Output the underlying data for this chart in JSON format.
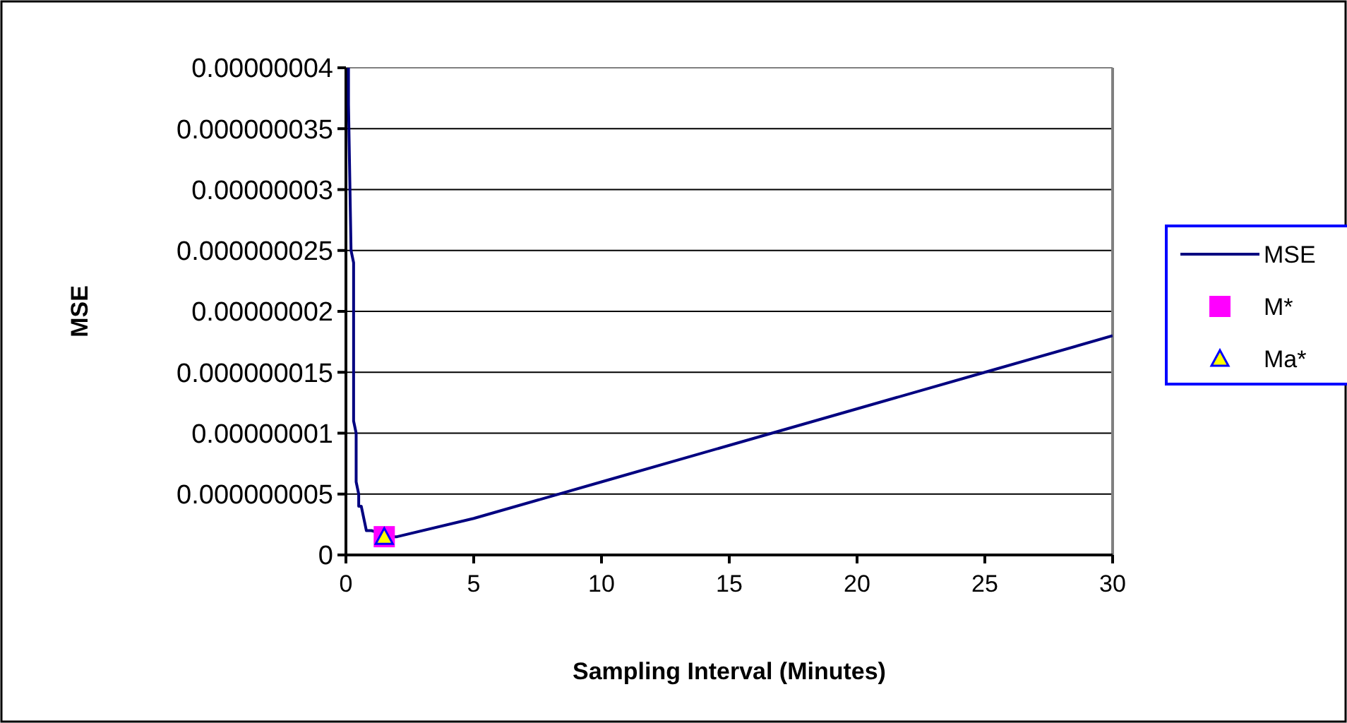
{
  "chart_data": {
    "type": "line",
    "xlabel": "Sampling Interval (Minutes)",
    "ylabel": "MSE",
    "xlim": [
      0,
      30
    ],
    "xticks": [
      0,
      5,
      10,
      15,
      20,
      25,
      30
    ],
    "ylim": [
      0,
      4e-08
    ],
    "yticks": [
      {
        "value": 0,
        "label": "0"
      },
      {
        "value": 5e-09,
        "label": "0.000000005"
      },
      {
        "value": 1e-08,
        "label": "0.00000001"
      },
      {
        "value": 1.5e-08,
        "label": "0.000000015"
      },
      {
        "value": 2e-08,
        "label": "0.00000002"
      },
      {
        "value": 2.5e-08,
        "label": "0.000000025"
      },
      {
        "value": 3e-08,
        "label": "0.00000003"
      },
      {
        "value": 3.5e-08,
        "label": "0.000000035"
      },
      {
        "value": 4e-08,
        "label": "0.00000004"
      }
    ],
    "grid": "y",
    "legend": "right",
    "series": [
      {
        "name": "MSE",
        "type": "line",
        "color": "#000080",
        "marker": "none",
        "x": [
          0.1,
          0.1,
          0.2,
          0.3,
          0.3,
          0.4,
          0.4,
          0.5,
          0.5,
          0.6,
          0.7,
          0.8,
          1,
          1.8,
          2,
          5,
          10,
          15,
          20,
          25,
          30
        ],
        "values": [
          4e-08,
          3.7e-08,
          2.5e-08,
          2.4e-08,
          1.1e-08,
          1e-08,
          6e-09,
          5e-09,
          4e-09,
          4e-09,
          3e-09,
          2e-09,
          2e-09,
          1.5e-09,
          1.5e-09,
          3e-09,
          6e-09,
          9e-09,
          1.2e-08,
          1.5e-08,
          1.8e-08
        ]
      },
      {
        "name": "M*",
        "type": "scatter",
        "color": "#ff00ff",
        "marker": "square",
        "x": [
          1.5
        ],
        "values": [
          1.5e-09
        ]
      },
      {
        "name": "Ma*",
        "type": "scatter",
        "color": "#ffff00",
        "marker": "triangle",
        "x": [
          1.5
        ],
        "values": [
          1.5e-09
        ]
      }
    ]
  }
}
